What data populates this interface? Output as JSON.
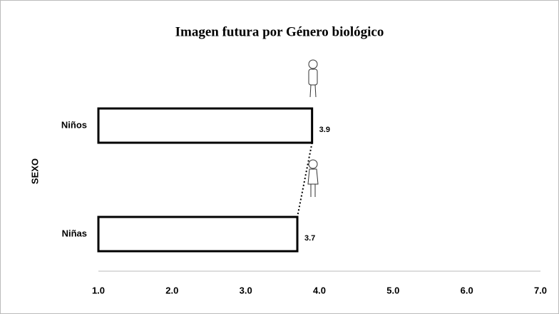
{
  "chart_data": {
    "type": "bar",
    "orientation": "horizontal",
    "title": "Imagen futura por Género biológico",
    "y_label": "SEXO",
    "categories": [
      "Niños",
      "Niñas"
    ],
    "values": [
      3.9,
      3.7
    ],
    "color": "#ffffff",
    "edge_color": "#000000",
    "connector": "dotted",
    "xlim": [
      1,
      7
    ],
    "xticks": [
      {
        "value": 1,
        "label": "1.0"
      },
      {
        "value": 2,
        "label": "2.0"
      },
      {
        "value": 3,
        "label": "3.0"
      },
      {
        "value": 4,
        "label": "4.0"
      },
      {
        "value": 5,
        "label": "5.0"
      },
      {
        "value": 6,
        "label": "6.0"
      },
      {
        "value": 7,
        "label": "7.0"
      }
    ],
    "grid": false
  }
}
